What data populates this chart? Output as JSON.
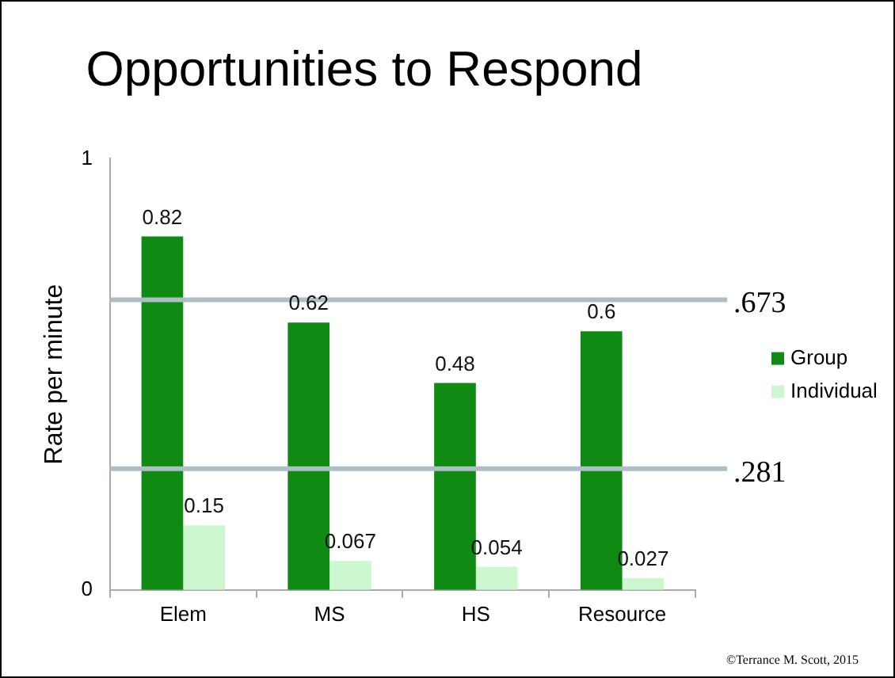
{
  "chart_data": {
    "type": "bar",
    "title": "Opportunities to Respond",
    "ylabel": "Rate per minute",
    "categories": [
      "Elem",
      "MS",
      "HS",
      "Resource"
    ],
    "series": [
      {
        "name": "Group",
        "color": "#0f8a12",
        "values": [
          0.82,
          0.62,
          0.48,
          0.6
        ]
      },
      {
        "name": "Individual",
        "color": "#ccf7cf",
        "values": [
          0.15,
          0.067,
          0.054,
          0.027
        ]
      }
    ],
    "ylim": [
      0,
      1
    ],
    "yticks": [
      0,
      1
    ],
    "grid": false,
    "legend": "right",
    "data_labels": true,
    "ref_lines": [
      {
        "axis": "y",
        "value": 0.673,
        "label": ".673",
        "color": "#aebfc4"
      },
      {
        "axis": "y",
        "value": 0.281,
        "label": ".281",
        "color": "#aebfc4"
      }
    ],
    "annotations": [
      "©Terrance M. Scott, 2015"
    ]
  }
}
